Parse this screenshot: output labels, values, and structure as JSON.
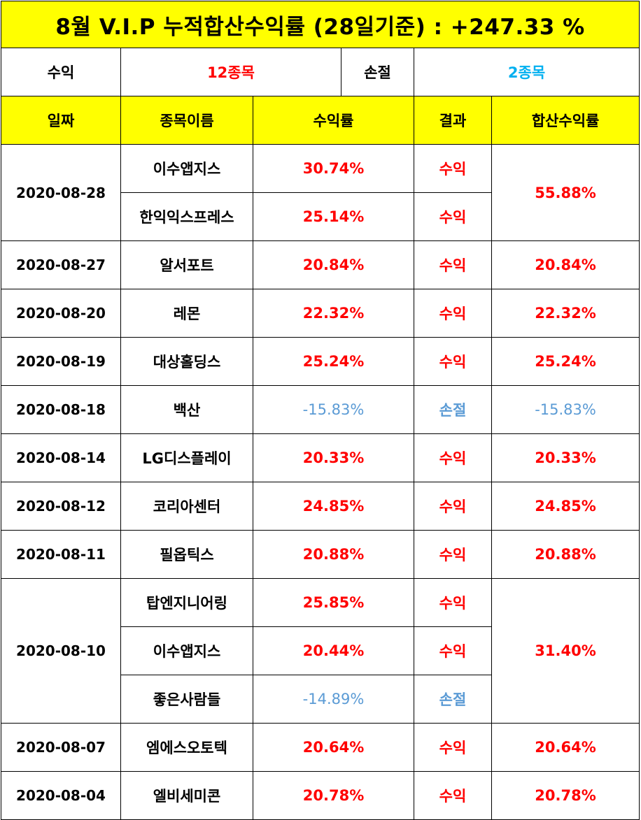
{
  "title": "8월 V.I.P 누적합산수익률 (28일기준) : +247.33 %",
  "summary": {
    "profit_label": "수익",
    "profit_count": "12종목",
    "loss_label": "손절",
    "loss_count": "2종목"
  },
  "headers": {
    "date": "일짜",
    "stock": "종목이름",
    "return": "수익률",
    "result": "결과",
    "combined": "합산수익률"
  },
  "colors": {
    "header_bg": "#ffff00",
    "profit": "#ff0000",
    "loss": "#5b9bd5",
    "loss_count": "#00b0f0"
  },
  "groups": [
    {
      "date": "2020-08-28",
      "combined": "55.88%",
      "combined_status": "profit",
      "items": [
        {
          "stock": "이수앱지스",
          "return": "30.74%",
          "result": "수익",
          "status": "profit"
        },
        {
          "stock": "한익익스프레스",
          "return": "25.14%",
          "result": "수익",
          "status": "profit"
        }
      ]
    },
    {
      "date": "2020-08-27",
      "combined": "20.84%",
      "combined_status": "profit",
      "items": [
        {
          "stock": "알서포트",
          "return": "20.84%",
          "result": "수익",
          "status": "profit"
        }
      ]
    },
    {
      "date": "2020-08-20",
      "combined": "22.32%",
      "combined_status": "profit",
      "items": [
        {
          "stock": "레몬",
          "return": "22.32%",
          "result": "수익",
          "status": "profit"
        }
      ]
    },
    {
      "date": "2020-08-19",
      "combined": "25.24%",
      "combined_status": "profit",
      "items": [
        {
          "stock": "대상홀딩스",
          "return": "25.24%",
          "result": "수익",
          "status": "profit"
        }
      ]
    },
    {
      "date": "2020-08-18",
      "combined": "-15.83%",
      "combined_status": "loss",
      "items": [
        {
          "stock": "백산",
          "return": "-15.83%",
          "result": "손절",
          "status": "loss"
        }
      ]
    },
    {
      "date": "2020-08-14",
      "combined": "20.33%",
      "combined_status": "profit",
      "items": [
        {
          "stock": "LG디스플레이",
          "return": "20.33%",
          "result": "수익",
          "status": "profit"
        }
      ]
    },
    {
      "date": "2020-08-12",
      "combined": "24.85%",
      "combined_status": "profit",
      "items": [
        {
          "stock": "코리아센터",
          "return": "24.85%",
          "result": "수익",
          "status": "profit"
        }
      ]
    },
    {
      "date": "2020-08-11",
      "combined": "20.88%",
      "combined_status": "profit",
      "items": [
        {
          "stock": "필옵틱스",
          "return": "20.88%",
          "result": "수익",
          "status": "profit"
        }
      ]
    },
    {
      "date": "2020-08-10",
      "combined": "31.40%",
      "combined_status": "profit",
      "items": [
        {
          "stock": "탑엔지니어링",
          "return": "25.85%",
          "result": "수익",
          "status": "profit"
        },
        {
          "stock": "이수앱지스",
          "return": "20.44%",
          "result": "수익",
          "status": "profit"
        },
        {
          "stock": "좋은사람들",
          "return": "-14.89%",
          "result": "손절",
          "status": "loss"
        }
      ]
    },
    {
      "date": "2020-08-07",
      "combined": "20.64%",
      "combined_status": "profit",
      "items": [
        {
          "stock": "엠에스오토텍",
          "return": "20.64%",
          "result": "수익",
          "status": "profit"
        }
      ]
    },
    {
      "date": "2020-08-04",
      "combined": "20.78%",
      "combined_status": "profit",
      "items": [
        {
          "stock": "엘비세미콘",
          "return": "20.78%",
          "result": "수익",
          "status": "profit"
        }
      ]
    }
  ]
}
